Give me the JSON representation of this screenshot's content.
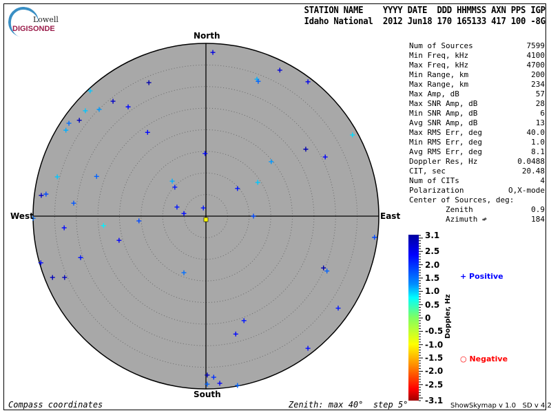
{
  "logo": {
    "line1": "Lowell",
    "line2": "DIGISONDE"
  },
  "header": {
    "line1": "STATION NAME    YYYY DATE  DDD HHMMSS AXN PPS IGP",
    "line2": "Idaho National  2012 Jun18 170 165133 417 100 -8G"
  },
  "stats": [
    {
      "label": "Num of Sources",
      "value": "7599"
    },
    {
      "label": "Min Freq, kHz",
      "value": "4100"
    },
    {
      "label": "Max Freq, kHz",
      "value": "4700"
    },
    {
      "label": "Min Range, km",
      "value": "200"
    },
    {
      "label": "Max Range, km",
      "value": "234"
    },
    {
      "label": "Max Amp, dB",
      "value": "57"
    },
    {
      "label": "Max SNR Amp, dB",
      "value": "28"
    },
    {
      "label": "Min SNR Amp, dB",
      "value": "6"
    },
    {
      "label": "Avg SNR Amp, dB",
      "value": "13"
    },
    {
      "label": "Max RMS Err, deg",
      "value": "40.0"
    },
    {
      "label": "Min RMS Err, deg",
      "value": "1.0"
    },
    {
      "label": "Avg RMS Err, deg",
      "value": "8.1"
    },
    {
      "label": "Doppler Res, Hz",
      "value": "0.0488"
    },
    {
      "label": "CIT, sec",
      "value": "20.48"
    },
    {
      "label": "Num of CITs",
      "value": "4"
    },
    {
      "label": "Polarization",
      "value": "O,X-mode"
    },
    {
      "label": "Center of Sources, deg:",
      "value": ""
    },
    {
      "label": "        Zenith",
      "value": "0.9"
    },
    {
      "label": "        Azimuth ↫",
      "value": "184"
    }
  ],
  "footer": {
    "left": "Compass coordinates",
    "center": "Zenith: max 40°  step 5°",
    "version": "ShowSkymap v 1.0   SD v 4.2"
  },
  "chart_data": {
    "type": "scatter",
    "projection": "polar skymap, compass coordinates",
    "directions": {
      "north": "North",
      "south": "South",
      "east": "East",
      "west": "West"
    },
    "zenith_max_deg": 40,
    "zenith_step_deg": 5,
    "colorbar": {
      "label": "Doppler, Hz",
      "range": [
        -3.1,
        3.1
      ],
      "ticks": [
        "3.1",
        "2.5",
        "2.0",
        "1.5",
        "1.0",
        "0.5",
        "0",
        "-0.5",
        "-1.0",
        "-1.5",
        "-2.0",
        "-2.5",
        "-3.1"
      ]
    },
    "legend": {
      "positive": "Positive",
      "negative": "Negative",
      "positive_color": "#0000ff",
      "negative_color": "#ff0000"
    },
    "point_fields": [
      "east_deg",
      "north_deg",
      "doppler_hz"
    ],
    "points": [
      [
        -13.2,
        30.9,
        3.0
      ],
      [
        -26.8,
        29.0,
        1.0
      ],
      [
        -21.5,
        26.6,
        2.8
      ],
      [
        -18.0,
        25.3,
        2.3
      ],
      [
        -27.9,
        24.4,
        1.0
      ],
      [
        -24.7,
        24.7,
        1.2
      ],
      [
        -29.3,
        22.2,
        2.9
      ],
      [
        -31.7,
        21.5,
        1.5
      ],
      [
        -32.4,
        19.9,
        1.1
      ],
      [
        -13.5,
        19.4,
        2.3
      ],
      [
        -0.2,
        14.5,
        2.3
      ],
      [
        -34.4,
        9.1,
        1.0
      ],
      [
        -25.3,
        9.2,
        1.6
      ],
      [
        -7.8,
        8.1,
        1.1
      ],
      [
        -7.2,
        6.7,
        2.2
      ],
      [
        -38.1,
        4.8,
        2.8
      ],
      [
        -37.0,
        5.1,
        1.8
      ],
      [
        -30.6,
        3.0,
        1.7
      ],
      [
        -6.7,
        2.1,
        2.2
      ],
      [
        -5.1,
        0.6,
        2.3
      ],
      [
        -0.6,
        1.9,
        2.2
      ],
      [
        1.6,
        37.9,
        2.6
      ],
      [
        17.1,
        33.8,
        2.7
      ],
      [
        11.8,
        31.7,
        1.1
      ],
      [
        12.1,
        31.2,
        1.6
      ],
      [
        23.6,
        31.1,
        2.5
      ],
      [
        33.9,
        18.8,
        0.9
      ],
      [
        23.1,
        15.5,
        3.0
      ],
      [
        27.6,
        13.7,
        2.4
      ],
      [
        15.1,
        12.6,
        1.2
      ],
      [
        12.0,
        7.8,
        1.0
      ],
      [
        7.3,
        6.4,
        2.2
      ],
      [
        11.0,
        0.0,
        1.8
      ],
      [
        -40.0,
        -0.5,
        1.5
      ],
      [
        -32.8,
        -2.7,
        2.3
      ],
      [
        -23.7,
        -2.2,
        0.8
      ],
      [
        -15.5,
        -1.1,
        1.8
      ],
      [
        -20.1,
        -5.6,
        2.4
      ],
      [
        -29.0,
        -9.6,
        2.2
      ],
      [
        -38.2,
        -10.8,
        2.3
      ],
      [
        -35.5,
        -14.2,
        2.9
      ],
      [
        -32.7,
        -14.2,
        2.9
      ],
      [
        -5.1,
        -13.1,
        1.5
      ],
      [
        0.0,
        -0.8,
        -1.0
      ],
      [
        39.0,
        -4.9,
        1.8
      ],
      [
        27.2,
        -12.0,
        3.0
      ],
      [
        28.0,
        -12.7,
        1.6
      ],
      [
        30.6,
        -21.3,
        2.2
      ],
      [
        8.8,
        -24.2,
        2.2
      ],
      [
        6.9,
        -27.3,
        2.3
      ],
      [
        23.6,
        -30.6,
        2.3
      ],
      [
        0.3,
        -36.8,
        2.9
      ],
      [
        1.8,
        -37.3,
        2.0
      ],
      [
        0.3,
        -38.9,
        1.6
      ],
      [
        3.2,
        -38.7,
        2.4
      ],
      [
        7.3,
        -39.2,
        1.6
      ]
    ]
  }
}
